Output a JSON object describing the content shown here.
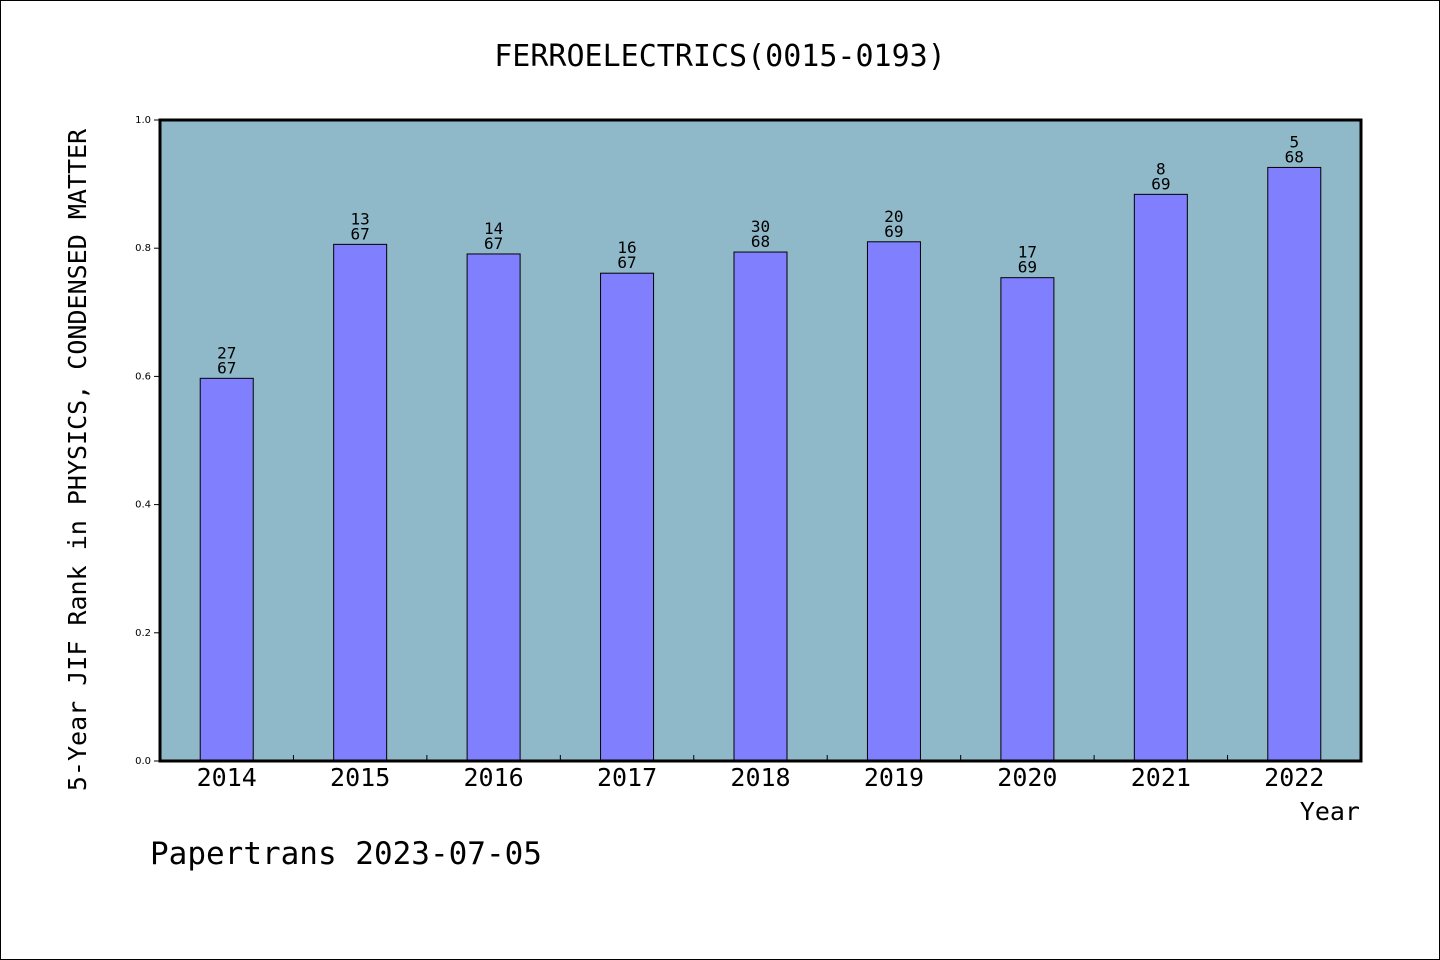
{
  "chart_data": {
    "type": "bar",
    "title": "FERROELECTRICS(0015-0193)",
    "xlabel": "Year",
    "ylabel": "5-Year JIF Rank in PHYSICS, CONDENSED MATTER",
    "ylim": [
      0,
      1.0
    ],
    "yticks": [
      "0.0",
      "0.2",
      "0.4",
      "0.6",
      "0.8",
      "1.0"
    ],
    "ytick_values": [
      0,
      0.2,
      0.4,
      0.6,
      0.8,
      1.0
    ],
    "categories": [
      "2014",
      "2015",
      "2016",
      "2017",
      "2018",
      "2019",
      "2020",
      "2021",
      "2022"
    ],
    "values": [
      0.597,
      0.806,
      0.791,
      0.761,
      0.794,
      0.81,
      0.754,
      0.884,
      0.926
    ],
    "rank_labels": [
      {
        "rank": "27",
        "total": "67"
      },
      {
        "rank": "13",
        "total": "67"
      },
      {
        "rank": "14",
        "total": "67"
      },
      {
        "rank": "16",
        "total": "67"
      },
      {
        "rank": "30",
        "total": "68"
      },
      {
        "rank": "20",
        "total": "69"
      },
      {
        "rank": "17",
        "total": "69"
      },
      {
        "rank": "8",
        "total": "69"
      },
      {
        "rank": "5",
        "total": "68"
      }
    ],
    "grid": false,
    "colors": {
      "plot_background": "#8fb8c8",
      "bar_fill": "#8080ff",
      "bar_edge": "#000000"
    }
  },
  "footer": {
    "watermark": "Papertrans 2023-07-05"
  }
}
